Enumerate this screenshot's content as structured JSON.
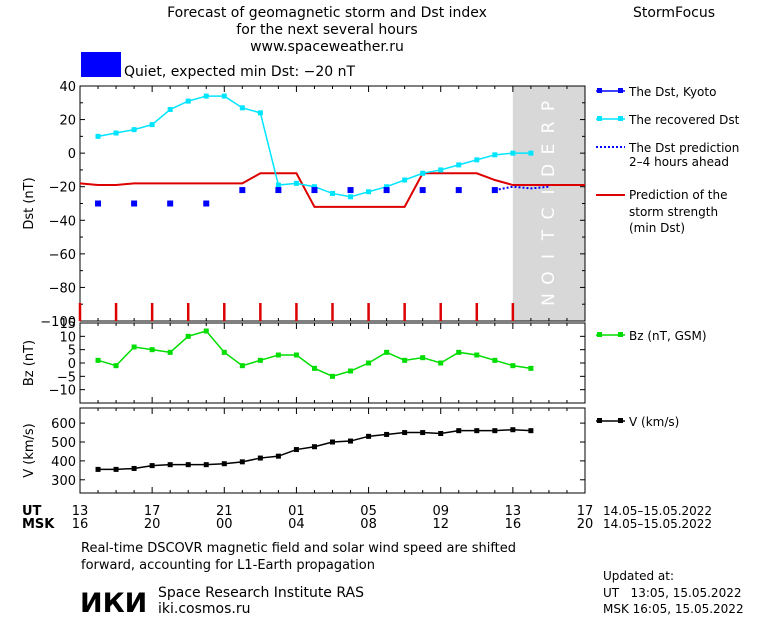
{
  "header": {
    "title_lines": [
      "Forecast of geomagnetic storm and Dst index",
      "for the next several hours",
      "www.spaceweather.ru"
    ],
    "brand": "StormFocus",
    "status_text": "Quiet, expected min Dst: −20 nT",
    "status_color": "#0000ff"
  },
  "prediction_label": "PREDICTION",
  "legend": {
    "dst_kyoto": "The Dst, Kyoto",
    "dst_recovered": "The recovered Dst",
    "dst_prediction": [
      "The Dst prediction",
      "2–4 hours ahead"
    ],
    "storm_strength": [
      "Prediction of the",
      "storm strength",
      "(min Dst)"
    ],
    "bz": "Bz (nT, GSM)",
    "v": "V (km/s)"
  },
  "axes": {
    "ut_label": "UT",
    "msk_label": "MSK",
    "ut_ticks": [
      "13",
      "17",
      "21",
      "01",
      "05",
      "09",
      "13",
      "17"
    ],
    "msk_ticks": [
      "16",
      "20",
      "00",
      "04",
      "08",
      "12",
      "16",
      "20"
    ],
    "date_range_ut": "14.05–15.05.2022",
    "date_range_msk": "14.05–15.05.2022"
  },
  "chart_data": [
    {
      "type": "scatter",
      "name": "dst",
      "ylabel": "Dst (nT)",
      "ylim": [
        -100,
        40
      ],
      "yticks": [
        40,
        20,
        0,
        -20,
        -40,
        -60,
        -80,
        -100
      ],
      "xlim": [
        0,
        28
      ],
      "x_unit": "hours after 13 UT 14.05.2022",
      "colors": {
        "kyoto": "#0000ff",
        "recovered": "#00e5ff",
        "prediction": "#0000ff",
        "storm": "#dd0000"
      },
      "series": [
        {
          "name": "The Dst, Kyoto",
          "x": [
            1,
            3,
            5,
            7,
            9,
            11,
            13,
            15,
            17,
            19,
            21,
            23
          ],
          "y": [
            -30,
            -30,
            -30,
            -30,
            -22,
            -22,
            -22,
            -22,
            -22,
            -22,
            -22,
            -22
          ]
        },
        {
          "name": "The recovered Dst",
          "x": [
            1,
            2,
            3,
            4,
            5,
            6,
            7,
            8,
            9,
            10,
            11,
            12,
            13,
            14,
            15,
            16,
            17,
            18,
            19,
            20,
            21,
            22,
            23,
            24,
            25
          ],
          "y": [
            10,
            12,
            14,
            17,
            26,
            31,
            34,
            34,
            27,
            24,
            -19,
            -18,
            -20,
            -24,
            -26,
            -23,
            -20,
            -16,
            -12,
            -10,
            -7,
            -4,
            -1,
            0,
            0
          ]
        },
        {
          "name": "The Dst prediction",
          "x": [
            23,
            24,
            25,
            26
          ],
          "y": [
            -22,
            -20,
            -21,
            -20
          ]
        },
        {
          "name": "Prediction of the storm strength (min Dst)",
          "x": [
            0,
            1,
            2,
            3,
            9,
            10,
            12,
            13,
            18,
            19,
            22,
            23,
            24,
            28
          ],
          "y": [
            -18,
            -19,
            -19,
            -18,
            -18,
            -12,
            -12,
            -32,
            -32,
            -12,
            -12,
            -16,
            -19,
            -19
          ]
        }
      ],
      "vertical_markers_x": [
        0,
        2,
        4,
        6,
        8,
        10,
        12,
        14,
        16,
        18,
        20,
        22,
        24
      ],
      "prediction_band_x": [
        24,
        28
      ]
    },
    {
      "type": "line",
      "name": "bz",
      "ylabel": "Bz (nT)",
      "ylim": [
        -15,
        15
      ],
      "yticks": [
        15,
        10,
        5,
        0,
        -5,
        -10
      ],
      "xlim": [
        0,
        28
      ],
      "color": "#00dd00",
      "series": [
        {
          "name": "Bz (nT, GSM)",
          "x": [
            1,
            2,
            3,
            4,
            5,
            6,
            7,
            8,
            9,
            10,
            11,
            12,
            13,
            14,
            15,
            16,
            17,
            18,
            19,
            20,
            21,
            22,
            23,
            24,
            25
          ],
          "y": [
            1,
            -1,
            6,
            5,
            4,
            10,
            12,
            4,
            -1,
            1,
            3,
            3,
            -2,
            -5,
            -3,
            0,
            4,
            1,
            2,
            0,
            4,
            3,
            1,
            -1,
            -2
          ]
        }
      ]
    },
    {
      "type": "line",
      "name": "v",
      "ylabel": "V (km/s)",
      "ylim": [
        230,
        680
      ],
      "yticks": [
        600,
        500,
        400,
        300
      ],
      "xlim": [
        0,
        28
      ],
      "color": "#000000",
      "series": [
        {
          "name": "V (km/s)",
          "x": [
            1,
            2,
            3,
            4,
            5,
            6,
            7,
            8,
            9,
            10,
            11,
            12,
            13,
            14,
            15,
            16,
            17,
            18,
            19,
            20,
            21,
            22,
            23,
            24,
            25
          ],
          "y": [
            355,
            355,
            360,
            375,
            380,
            380,
            380,
            385,
            395,
            415,
            425,
            460,
            475,
            500,
            505,
            530,
            540,
            550,
            550,
            545,
            560,
            560,
            560,
            565,
            560
          ]
        }
      ]
    }
  ],
  "footer": {
    "note_lines": [
      "Real-time DSCOVR magnetic field and solar wind speed are shifted",
      "forward, accounting for L1-Earth propagation"
    ],
    "logo_text": "ИКИ",
    "institute": "Space Research Institute RAS",
    "website": "iki.cosmos.ru",
    "updated_label": "Updated at:",
    "updated_ut": "UT   13:05, 15.05.2022",
    "updated_msk": "MSK 16:05, 15.05.2022"
  }
}
